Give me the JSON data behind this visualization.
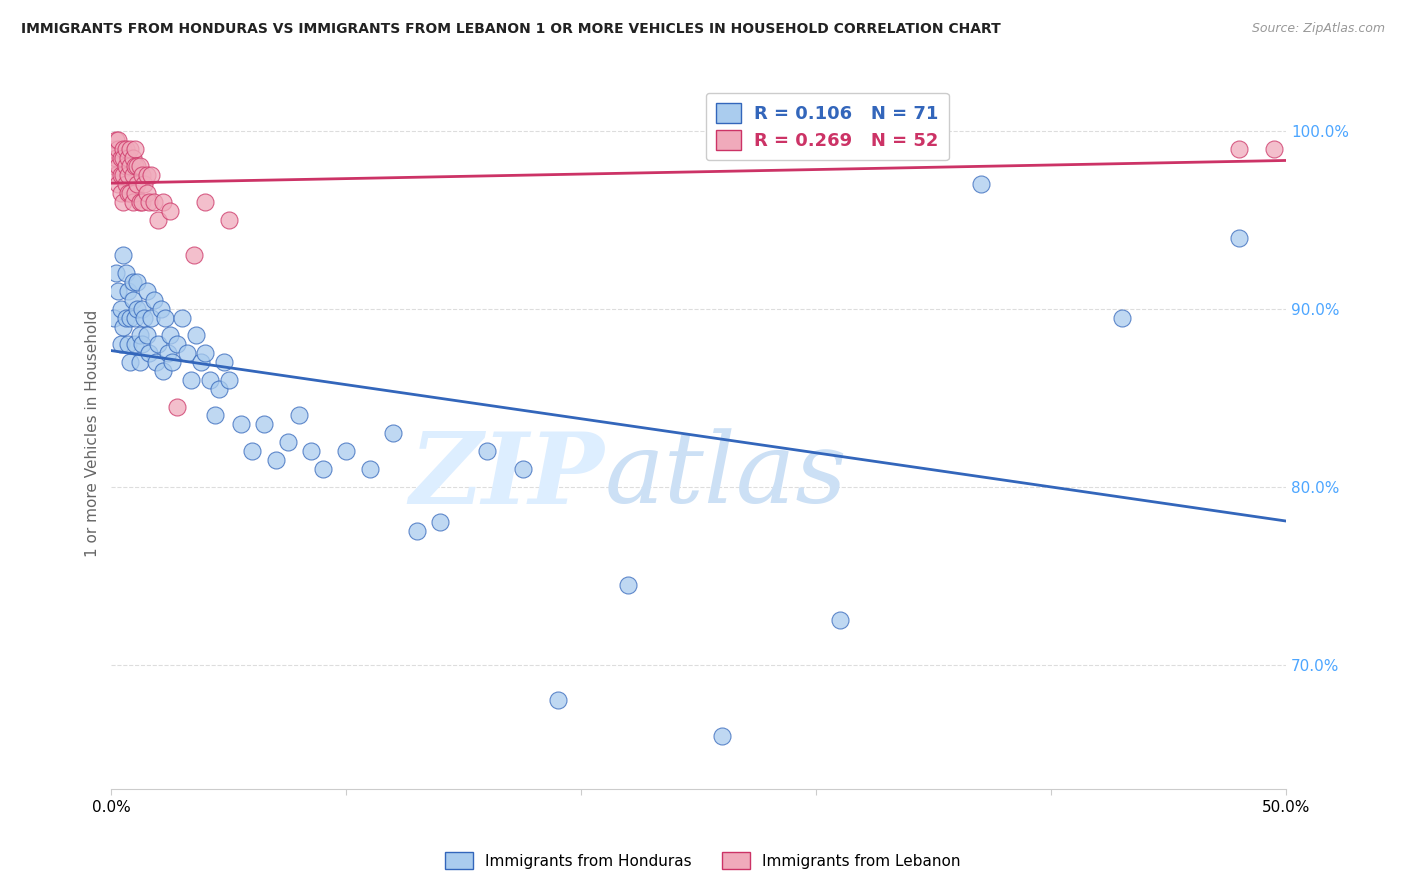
{
  "title": "IMMIGRANTS FROM HONDURAS VS IMMIGRANTS FROM LEBANON 1 OR MORE VEHICLES IN HOUSEHOLD CORRELATION CHART",
  "source": "Source: ZipAtlas.com",
  "ylabel": "1 or more Vehicles in Household",
  "xlim": [
    0.0,
    0.5
  ],
  "ylim": [
    0.63,
    1.03
  ],
  "xticks": [
    0.0,
    0.1,
    0.2,
    0.3,
    0.4,
    0.5
  ],
  "xticklabels": [
    "0.0%",
    "",
    "",
    "",
    "",
    "50.0%"
  ],
  "yticks": [
    0.7,
    0.8,
    0.9,
    1.0
  ],
  "yticklabels": [
    "70.0%",
    "80.0%",
    "90.0%",
    "100.0%"
  ],
  "ytick_color": "#4da6ff",
  "R_honduras": 0.106,
  "N_honduras": 71,
  "R_lebanon": 0.269,
  "N_lebanon": 52,
  "color_honduras": "#aaccee",
  "color_lebanon": "#f0aabb",
  "line_color_honduras": "#3366bb",
  "line_color_lebanon": "#cc3366",
  "watermark_zip": "ZIP",
  "watermark_atlas": "atlas",
  "watermark_color_zip": "#ddeeff",
  "watermark_color_atlas": "#cce0f5",
  "legend_label_honduras": "Immigrants from Honduras",
  "legend_label_lebanon": "Immigrants from Lebanon",
  "honduras_x": [
    0.001,
    0.002,
    0.003,
    0.004,
    0.004,
    0.005,
    0.005,
    0.006,
    0.006,
    0.007,
    0.007,
    0.008,
    0.008,
    0.009,
    0.009,
    0.01,
    0.01,
    0.011,
    0.011,
    0.012,
    0.012,
    0.013,
    0.013,
    0.014,
    0.015,
    0.015,
    0.016,
    0.017,
    0.018,
    0.019,
    0.02,
    0.021,
    0.022,
    0.023,
    0.024,
    0.025,
    0.026,
    0.028,
    0.03,
    0.032,
    0.034,
    0.036,
    0.038,
    0.04,
    0.042,
    0.044,
    0.046,
    0.048,
    0.05,
    0.055,
    0.06,
    0.065,
    0.07,
    0.075,
    0.08,
    0.085,
    0.09,
    0.1,
    0.11,
    0.12,
    0.13,
    0.14,
    0.16,
    0.175,
    0.19,
    0.22,
    0.26,
    0.31,
    0.37,
    0.43,
    0.48
  ],
  "honduras_y": [
    0.895,
    0.92,
    0.91,
    0.9,
    0.88,
    0.93,
    0.89,
    0.92,
    0.895,
    0.88,
    0.91,
    0.895,
    0.87,
    0.905,
    0.915,
    0.895,
    0.88,
    0.9,
    0.915,
    0.885,
    0.87,
    0.9,
    0.88,
    0.895,
    0.885,
    0.91,
    0.875,
    0.895,
    0.905,
    0.87,
    0.88,
    0.9,
    0.865,
    0.895,
    0.875,
    0.885,
    0.87,
    0.88,
    0.895,
    0.875,
    0.86,
    0.885,
    0.87,
    0.875,
    0.86,
    0.84,
    0.855,
    0.87,
    0.86,
    0.835,
    0.82,
    0.835,
    0.815,
    0.825,
    0.84,
    0.82,
    0.81,
    0.82,
    0.81,
    0.83,
    0.775,
    0.78,
    0.82,
    0.81,
    0.68,
    0.745,
    0.66,
    0.725,
    0.97,
    0.895,
    0.94
  ],
  "lebanon_x": [
    0.001,
    0.001,
    0.002,
    0.002,
    0.002,
    0.003,
    0.003,
    0.003,
    0.003,
    0.004,
    0.004,
    0.004,
    0.005,
    0.005,
    0.005,
    0.005,
    0.006,
    0.006,
    0.006,
    0.007,
    0.007,
    0.007,
    0.008,
    0.008,
    0.008,
    0.009,
    0.009,
    0.009,
    0.01,
    0.01,
    0.01,
    0.011,
    0.011,
    0.012,
    0.012,
    0.013,
    0.013,
    0.014,
    0.015,
    0.015,
    0.016,
    0.017,
    0.018,
    0.02,
    0.022,
    0.025,
    0.028,
    0.035,
    0.04,
    0.05,
    0.48,
    0.495
  ],
  "lebanon_y": [
    0.99,
    0.98,
    0.995,
    0.985,
    0.975,
    0.99,
    0.98,
    0.97,
    0.995,
    0.985,
    0.975,
    0.965,
    0.99,
    0.985,
    0.975,
    0.96,
    0.99,
    0.98,
    0.97,
    0.985,
    0.975,
    0.965,
    0.99,
    0.98,
    0.965,
    0.985,
    0.975,
    0.96,
    0.99,
    0.98,
    0.965,
    0.98,
    0.97,
    0.98,
    0.96,
    0.975,
    0.96,
    0.97,
    0.975,
    0.965,
    0.96,
    0.975,
    0.96,
    0.95,
    0.96,
    0.955,
    0.845,
    0.93,
    0.96,
    0.95,
    0.99,
    0.99
  ]
}
